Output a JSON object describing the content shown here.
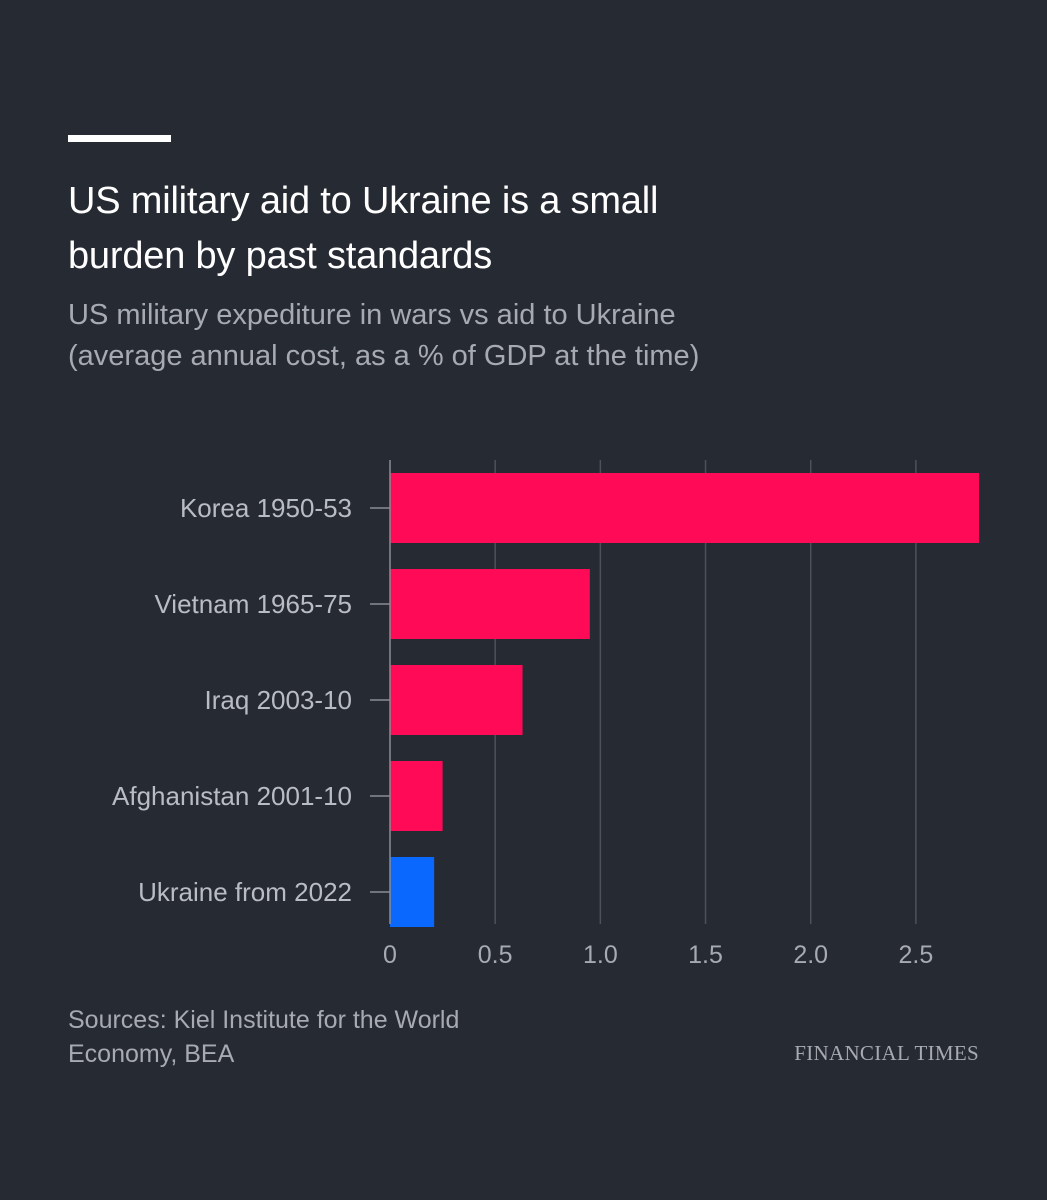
{
  "header": {
    "title_line1": "US military aid to Ukraine is a small",
    "title_line2": "burden by past standards",
    "subtitle_line1": "US military expediture in wars vs aid to Ukraine",
    "subtitle_line2": "(average annual cost, as a % of GDP at the time)"
  },
  "footer": {
    "source_line1": "Sources: Kiel Institute for the World",
    "source_line2": "Economy, BEA",
    "logo": "FINANCIAL TIMES"
  },
  "colors": {
    "background": "#262a33",
    "war_bar": "#ff0a57",
    "ukraine_bar": "#0a68ff",
    "grid": "#4d515a",
    "axis": "#8a8d94"
  },
  "chart_data": {
    "type": "bar",
    "orientation": "horizontal",
    "title": "US military aid to Ukraine is a small burden by past standards",
    "subtitle": "US military expediture in wars vs aid to Ukraine (average annual cost, as a % of GDP at the time)",
    "categories": [
      "Korea 1950-53",
      "Vietnam 1965-75",
      "Iraq 2003-10",
      "Afghanistan 2001-10",
      "Ukraine from 2022"
    ],
    "values": [
      2.8,
      0.95,
      0.63,
      0.25,
      0.21
    ],
    "highlight": [
      false,
      false,
      false,
      false,
      true
    ],
    "xlim": [
      0,
      2.8
    ],
    "xticks": [
      0,
      0.5,
      1.0,
      1.5,
      2.0,
      2.5
    ],
    "xtick_labels": [
      "0",
      "0.5",
      "1.0",
      "1.5",
      "2.0",
      "2.5"
    ],
    "xlabel": "",
    "ylabel": "",
    "grid": true,
    "legend": "none"
  }
}
